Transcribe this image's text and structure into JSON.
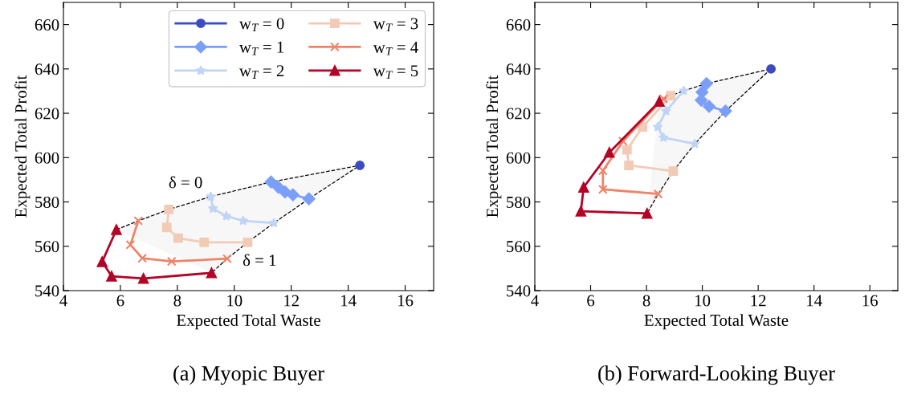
{
  "chart_data": [
    {
      "type": "line",
      "title": "(a) Myopic Buyer",
      "xlabel": "Expected Total Waste",
      "ylabel": "Expected Total Profit",
      "xlim": [
        4,
        17
      ],
      "ylim": [
        540,
        670
      ],
      "xticks": [
        4,
        6,
        8,
        10,
        12,
        14,
        16
      ],
      "yticks": [
        540,
        560,
        580,
        600,
        620,
        640,
        660
      ],
      "grid": false,
      "legend": "top right",
      "annotations": [
        "δ = 0",
        "δ = 1"
      ],
      "series": [
        {
          "type": "area",
          "color": "#f7f7f7",
          "line_style": "dashed",
          "x": [
            5.86,
            6.63,
            7.7,
            9.17,
            11.29,
            14.41,
            12.62,
            11.39,
            10.47,
            9.75,
            9.2
          ],
          "values": [
            567.5,
            571.5,
            576.6,
            582.4,
            589.0,
            596.5,
            581.4,
            570.5,
            561.8,
            554.4,
            548.0
          ]
        },
        {
          "name": "w$_{T}$ = 0",
          "color": "#3b4cc0",
          "marker": "circle",
          "x": [
            14.41
          ],
          "values": [
            596.5
          ]
        },
        {
          "name": "w$_{T}$ = 1",
          "color": "#7b9ff9",
          "marker": "diamond",
          "x": [
            11.29,
            11.55,
            11.78,
            12.06,
            12.62
          ],
          "values": [
            589.0,
            586.6,
            584.5,
            583.2,
            581.4
          ]
        },
        {
          "name": "w$_{T}$ = 2",
          "color": "#c0d4f5",
          "marker": "star",
          "x": [
            9.17,
            9.25,
            9.72,
            10.31,
            11.39
          ],
          "values": [
            582.4,
            577.0,
            573.6,
            571.5,
            570.5
          ]
        },
        {
          "name": "w$_{T}$ = 3",
          "color": "#f2cbb7",
          "marker": "square",
          "x": [
            7.7,
            7.63,
            8.03,
            8.94,
            10.47
          ],
          "values": [
            576.6,
            568.5,
            563.7,
            561.8,
            561.8
          ]
        },
        {
          "name": "w$_{T}$ = 4",
          "color": "#ee8468",
          "marker": "cross",
          "x": [
            6.63,
            6.35,
            6.77,
            7.8,
            9.75
          ],
          "values": [
            571.5,
            560.7,
            554.6,
            553.2,
            554.4
          ]
        },
        {
          "name": "w$_{T}$ = 5",
          "color": "#b40426",
          "marker": "triangle",
          "x": [
            5.86,
            5.36,
            5.69,
            6.81,
            9.2
          ],
          "values": [
            567.5,
            553.0,
            546.5,
            545.5,
            548.0
          ]
        }
      ]
    },
    {
      "type": "line",
      "title": "(b) Forward-Looking Buyer",
      "xlabel": "Expected Total Waste",
      "ylabel": "Expected Total Profit",
      "xlim": [
        4,
        17
      ],
      "ylim": [
        540,
        670
      ],
      "xticks": [
        4,
        6,
        8,
        10,
        12,
        14,
        16
      ],
      "yticks": [
        540,
        560,
        580,
        600,
        620,
        640,
        660
      ],
      "grid": false,
      "series": [
        {
          "type": "area",
          "color": "#f7f7f7",
          "line_style": "dashed",
          "x": [
            8.46,
            8.61,
            8.87,
            9.33,
            10.15,
            12.46,
            10.83,
            9.73,
            8.96,
            8.42,
            8.02
          ],
          "values": [
            625.3,
            626.5,
            627.9,
            630.1,
            633.4,
            640.0,
            621.0,
            606.2,
            593.9,
            583.6,
            574.8
          ]
        },
        {
          "color": "#3b4cc0",
          "marker": "circle",
          "x": [
            12.46
          ],
          "values": [
            640.0
          ]
        },
        {
          "color": "#7b9ff9",
          "marker": "diamond",
          "x": [
            10.15,
            9.99,
            9.96,
            10.24,
            10.83
          ],
          "values": [
            633.4,
            629.5,
            625.9,
            623.1,
            621.0
          ]
        },
        {
          "color": "#c0d4f5",
          "marker": "star",
          "x": [
            9.33,
            8.7,
            8.4,
            8.61,
            9.73
          ],
          "values": [
            630.1,
            621.0,
            613.8,
            609.0,
            606.2
          ]
        },
        {
          "color": "#f2cbb7",
          "marker": "square",
          "x": [
            8.87,
            7.86,
            7.3,
            7.37,
            8.96
          ],
          "values": [
            627.9,
            613.8,
            603.5,
            596.5,
            593.9
          ]
        },
        {
          "color": "#ee8468",
          "marker": "cross",
          "x": [
            8.61,
            7.16,
            6.44,
            6.44,
            8.42
          ],
          "values": [
            626.5,
            607.4,
            594.1,
            585.7,
            583.6
          ]
        },
        {
          "color": "#b40426",
          "marker": "triangle",
          "x": [
            8.46,
            6.67,
            5.75,
            5.65,
            8.02
          ],
          "values": [
            625.3,
            602.3,
            586.6,
            575.8,
            574.8
          ]
        }
      ]
    }
  ]
}
